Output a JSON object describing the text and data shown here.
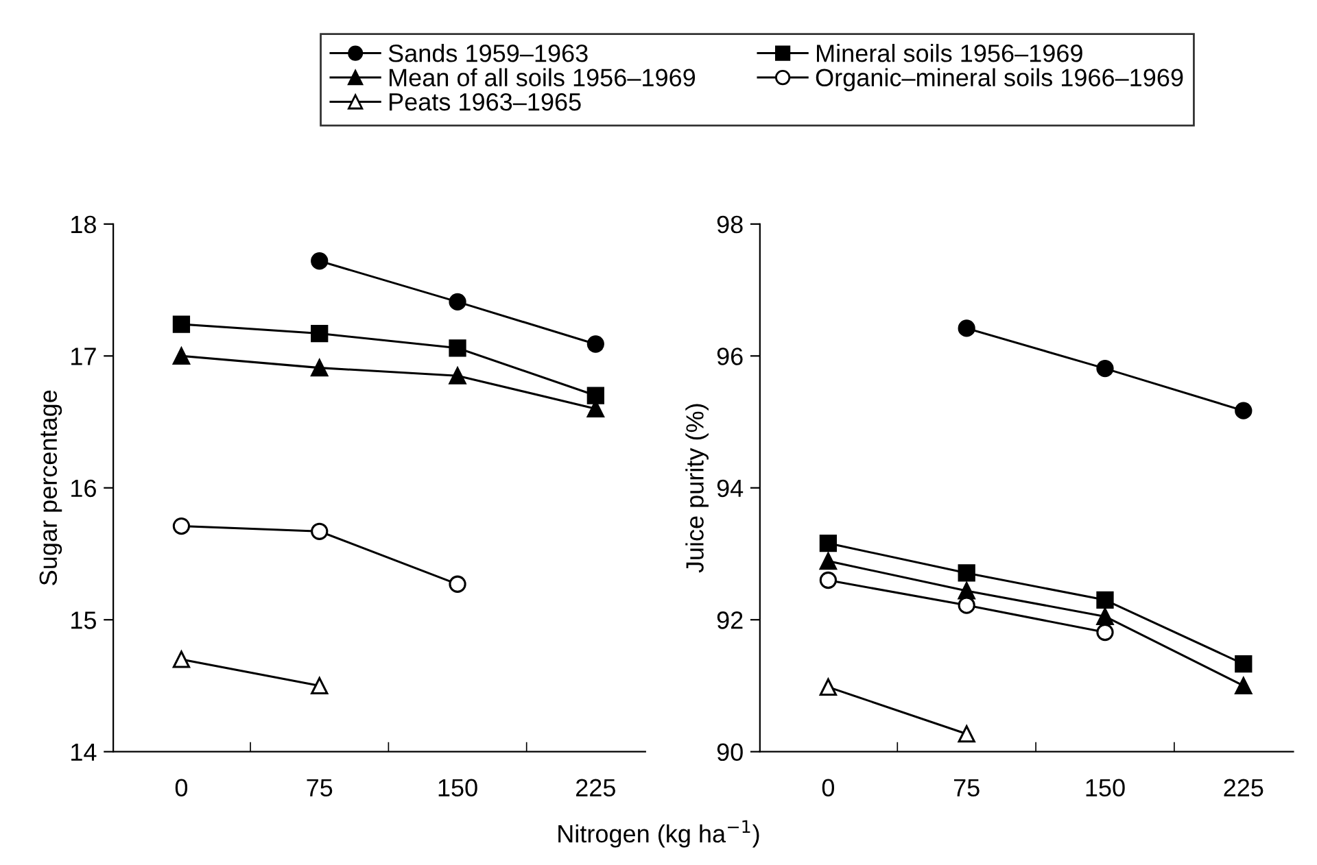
{
  "chart_data": [
    {
      "type": "line",
      "ylabel": "Sugar percentage",
      "xlabel": "Nitrogen (kg ha$^{−1}$)",
      "x": [
        0,
        75,
        150,
        225
      ],
      "xlim": [
        -37,
        252
      ],
      "ylim": [
        14,
        18
      ],
      "yticks": [
        14,
        15,
        16,
        17,
        18
      ],
      "xticks": [
        {
          "value": 0,
          "label": "0"
        },
        {
          "value": 37.5,
          "label": null
        },
        {
          "value": 75,
          "label": "75"
        },
        {
          "value": 112.5,
          "label": null
        },
        {
          "value": 150,
          "label": "150"
        },
        {
          "value": 187.5,
          "label": null
        },
        {
          "value": 225,
          "label": "225"
        }
      ],
      "grid": false,
      "legend": "top",
      "line_style": "solid",
      "series": [
        {
          "name": "Sands 1959–1963",
          "color": "#000000",
          "marker": "circle",
          "values": [
            null,
            17.72,
            17.41,
            17.09
          ]
        },
        {
          "name": "Mineral soils 1956–1969",
          "color": "#000000",
          "marker": "square",
          "values": [
            17.24,
            17.17,
            17.06,
            16.7
          ]
        },
        {
          "name": "Mean of all soils 1956–1969",
          "color": "#000000",
          "marker": "triangle",
          "values": [
            17.0,
            16.91,
            16.85,
            16.6
          ]
        },
        {
          "name": "Organic–mineral soils 1966–1969",
          "color": "#000000",
          "marker": "circle",
          "values": [
            15.71,
            15.67,
            15.27,
            null
          ]
        },
        {
          "name": "Peats 1963–1965",
          "color": "#000000",
          "marker": "triangle",
          "values": [
            14.7,
            14.5,
            null,
            null
          ]
        }
      ]
    },
    {
      "type": "line",
      "ylabel": "Juice purity (%)",
      "x": [
        0,
        75,
        150,
        225
      ],
      "xlim": [
        -37,
        252
      ],
      "ylim": [
        90,
        98
      ],
      "yticks": [
        90,
        92,
        94,
        96,
        98
      ],
      "xticks": [
        {
          "value": 0,
          "label": "0"
        },
        {
          "value": 37.5,
          "label": null
        },
        {
          "value": 75,
          "label": "75"
        },
        {
          "value": 112.5,
          "label": null
        },
        {
          "value": 150,
          "label": "150"
        },
        {
          "value": 187.5,
          "label": null
        },
        {
          "value": 225,
          "label": "225"
        }
      ],
      "grid": false,
      "line_style": "solid",
      "series": [
        {
          "color": "#000000",
          "marker": "circle",
          "values": [
            null,
            96.42,
            95.81,
            95.17
          ]
        },
        {
          "color": "#000000",
          "marker": "square",
          "values": [
            93.16,
            92.71,
            92.3,
            91.33
          ]
        },
        {
          "color": "#000000",
          "marker": "triangle",
          "values": [
            92.89,
            92.44,
            92.05,
            91.0
          ]
        },
        {
          "color": "#000000",
          "marker": "circle",
          "values": [
            92.6,
            92.22,
            91.81,
            null
          ]
        },
        {
          "color": "#000000",
          "marker": "triangle",
          "values": [
            90.98,
            90.27,
            null,
            null
          ]
        }
      ]
    }
  ]
}
